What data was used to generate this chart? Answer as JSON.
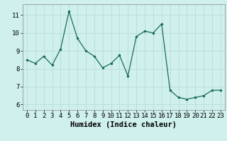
{
  "x": [
    0,
    1,
    2,
    3,
    4,
    5,
    6,
    7,
    8,
    9,
    10,
    11,
    12,
    13,
    14,
    15,
    16,
    17,
    18,
    19,
    20,
    21,
    22,
    23
  ],
  "y": [
    8.5,
    8.3,
    8.7,
    8.2,
    9.1,
    11.2,
    9.7,
    9.0,
    8.7,
    8.05,
    8.3,
    8.75,
    7.6,
    9.8,
    10.1,
    10.0,
    10.5,
    6.8,
    6.4,
    6.3,
    6.4,
    6.5,
    6.8,
    6.8
  ],
  "line_color": "#1a6b5a",
  "marker": ".",
  "marker_size": 3,
  "bg_color": "#cff0ec",
  "grid_color": "#b8ddd8",
  "xlabel": "Humidex (Indice chaleur)",
  "xlim": [
    -0.5,
    23.5
  ],
  "ylim": [
    5.7,
    11.6
  ],
  "yticks": [
    6,
    7,
    8,
    9,
    10,
    11
  ],
  "xticks": [
    0,
    1,
    2,
    3,
    4,
    5,
    6,
    7,
    8,
    9,
    10,
    11,
    12,
    13,
    14,
    15,
    16,
    17,
    18,
    19,
    20,
    21,
    22,
    23
  ],
  "xlabel_fontsize": 7.5,
  "tick_fontsize": 6.5,
  "spine_color": "#888888"
}
